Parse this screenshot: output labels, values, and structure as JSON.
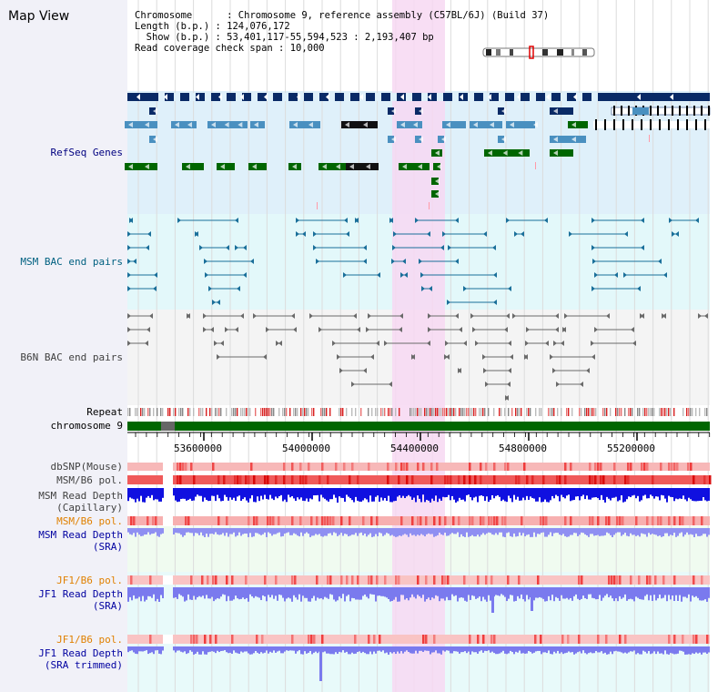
{
  "page": {
    "title": "Map View"
  },
  "info": {
    "chromosome_label": "Chromosome",
    "chromosome_value": "Chromosome 9, reference assembly (C57BL/6J) (Build 37)",
    "length_label": "Length (b.p.)",
    "length_value": "124,076,172",
    "show_label": "Show (b.p.)",
    "show_value": "53,401,117-55,594,523 : 2,193,407 bp",
    "coverage_label": "Read coverage check span",
    "coverage_value": "10,000"
  },
  "tracks": {
    "refseq": {
      "label": "RefSeq Genes",
      "color": "#000080"
    },
    "msm_bac": {
      "label": "MSM BAC end pairs",
      "color": "#006080"
    },
    "b6n_bac": {
      "label": "B6N BAC end pairs",
      "color": "#404040"
    },
    "repeat": {
      "label": "Repeat",
      "color": "#000000"
    },
    "chromosome": {
      "label": "chromosome 9",
      "color": "#000000"
    },
    "dbsnp": {
      "label": "dbSNP(Mouse)",
      "color": "#404040"
    },
    "msm_b6_pol_1": {
      "label": "MSM/B6 pol.",
      "color": "#404040"
    },
    "msm_depth_cap": {
      "label": "MSM Read Depth\n(Capillary)",
      "color": "#404040"
    },
    "msm_b6_pol_2": {
      "label": "MSM/B6 pol.",
      "color": "#e08000"
    },
    "msm_depth_sra": {
      "label": "MSM Read Depth\n(SRA)",
      "color": "#0000a0"
    },
    "jf1_b6_pol_1": {
      "label": "JF1/B6 pol.",
      "color": "#e08000"
    },
    "jf1_depth_sra": {
      "label": "JF1 Read Depth\n(SRA)",
      "color": "#0000a0"
    },
    "jf1_b6_pol_2": {
      "label": "JF1/B6 pol.",
      "color": "#e08000"
    },
    "jf1_depth_trim": {
      "label": "JF1 Read Depth\n(SRA trimmed)",
      "color": "#0000a0"
    }
  },
  "axis": {
    "ticks": [
      "53600000",
      "54000000",
      "54400000",
      "54800000",
      "55200000"
    ]
  },
  "colors": {
    "highlight": "#f7d8f2",
    "gene_dark": "#0a2a66",
    "gene_light": "#4a90c0",
    "gene_green": "#006600",
    "bac_msm": "#1a6f9a",
    "bac_b6n": "#6a6a6a",
    "chrom_green": "#006600",
    "depth_dark": "#1010e0",
    "depth_light": "#7a7aee",
    "pol_red": "#ee3333",
    "pol_pink": "#f7b0b0"
  }
}
